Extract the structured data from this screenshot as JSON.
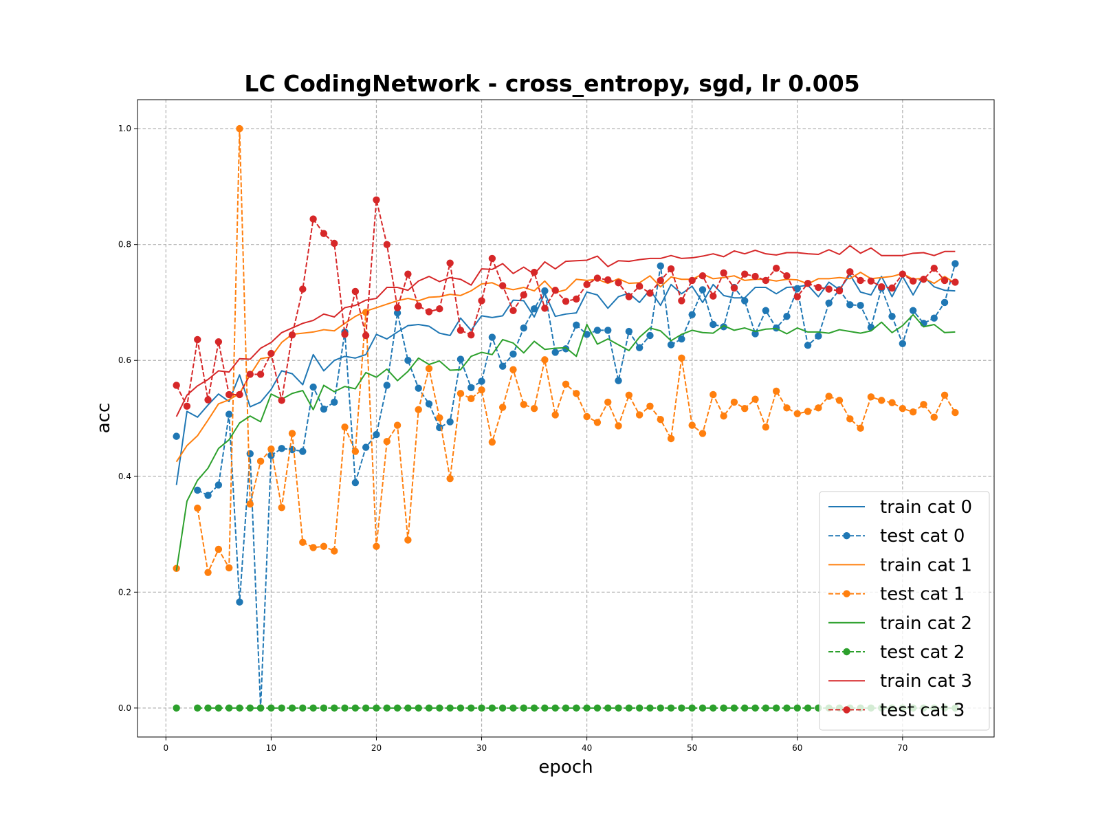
{
  "chart_data": {
    "type": "line",
    "title": "LC CodingNetwork - cross_entropy, sgd, lr 0.005",
    "xlabel": "epoch",
    "ylabel": "acc",
    "xlim": [
      -2.7,
      78.7
    ],
    "ylim": [
      -0.05,
      1.05
    ],
    "xticks": [
      "0",
      "10",
      "20",
      "30",
      "40",
      "50",
      "60",
      "70"
    ],
    "yticks": [
      "0.0",
      "0.2",
      "0.4",
      "0.6",
      "0.8",
      "1.0"
    ],
    "grid": true,
    "legend_position": "lower-right",
    "x": [
      1,
      2,
      3,
      4,
      5,
      6,
      7,
      8,
      9,
      10,
      11,
      12,
      13,
      14,
      15,
      16,
      17,
      18,
      19,
      20,
      21,
      22,
      23,
      24,
      25,
      26,
      27,
      28,
      29,
      30,
      31,
      32,
      33,
      34,
      35,
      36,
      37,
      38,
      39,
      40,
      41,
      42,
      43,
      44,
      45,
      46,
      47,
      48,
      49,
      50,
      51,
      52,
      53,
      54,
      55,
      56,
      57,
      58,
      59,
      60,
      61,
      62,
      63,
      64,
      65,
      66,
      67,
      68,
      69,
      70,
      71,
      72,
      73,
      74,
      75
    ],
    "series": [
      {
        "name": "train cat 0",
        "color": "#1f77b4",
        "style": "solid",
        "marker": false,
        "values": [
          0.385,
          0.512,
          0.502,
          0.523,
          0.542,
          0.529,
          0.575,
          0.52,
          0.528,
          0.55,
          0.582,
          0.577,
          0.558,
          0.61,
          0.582,
          0.6,
          0.607,
          0.604,
          0.61,
          0.645,
          0.637,
          0.649,
          0.66,
          0.662,
          0.659,
          0.647,
          0.643,
          0.673,
          0.652,
          0.677,
          0.674,
          0.677,
          0.704,
          0.703,
          0.675,
          0.716,
          0.676,
          0.68,
          0.682,
          0.718,
          0.713,
          0.69,
          0.71,
          0.716,
          0.7,
          0.722,
          0.695,
          0.731,
          0.715,
          0.728,
          0.7,
          0.731,
          0.712,
          0.708,
          0.708,
          0.726,
          0.726,
          0.715,
          0.726,
          0.727,
          0.73,
          0.71,
          0.735,
          0.722,
          0.748,
          0.718,
          0.713,
          0.745,
          0.71,
          0.745,
          0.713,
          0.745,
          0.727,
          0.721,
          0.72
        ]
      },
      {
        "name": "test cat 0",
        "color": "#1f77b4",
        "style": "dashed",
        "marker": true,
        "values": [
          0.469,
          null,
          0.376,
          0.367,
          0.385,
          0.507,
          0.183,
          0.439,
          0.0,
          0.436,
          0.448,
          0.446,
          0.443,
          0.554,
          0.516,
          0.528,
          0.649,
          0.389,
          0.45,
          0.472,
          0.557,
          0.682,
          0.6,
          0.552,
          0.525,
          0.484,
          0.494,
          0.602,
          0.553,
          0.564,
          0.64,
          0.59,
          0.611,
          0.656,
          0.689,
          0.72,
          0.614,
          0.62,
          0.661,
          0.645,
          0.652,
          0.652,
          0.565,
          0.65,
          0.622,
          0.643,
          0.763,
          0.627,
          0.637,
          0.679,
          0.722,
          0.662,
          0.658,
          0.726,
          0.703,
          0.646,
          0.686,
          0.656,
          0.676,
          0.724,
          0.626,
          0.642,
          0.699,
          0.722,
          0.696,
          0.695,
          0.657,
          0.725,
          0.676,
          0.629,
          0.686,
          0.664,
          0.673,
          0.7,
          0.767
        ]
      },
      {
        "name": "train cat 1",
        "color": "#ff7f0e",
        "style": "solid",
        "marker": false,
        "values": [
          0.425,
          0.453,
          0.47,
          0.497,
          0.525,
          0.532,
          0.543,
          0.575,
          0.603,
          0.606,
          0.631,
          0.645,
          0.647,
          0.649,
          0.653,
          0.651,
          0.664,
          0.676,
          0.685,
          0.691,
          0.697,
          0.703,
          0.707,
          0.703,
          0.709,
          0.71,
          0.714,
          0.712,
          0.72,
          0.732,
          0.734,
          0.726,
          0.722,
          0.726,
          0.72,
          0.737,
          0.717,
          0.722,
          0.74,
          0.738,
          0.74,
          0.733,
          0.741,
          0.733,
          0.734,
          0.746,
          0.727,
          0.744,
          0.74,
          0.74,
          0.749,
          0.741,
          0.743,
          0.746,
          0.738,
          0.74,
          0.74,
          0.737,
          0.74,
          0.739,
          0.732,
          0.741,
          0.741,
          0.743,
          0.741,
          0.752,
          0.741,
          0.743,
          0.745,
          0.75,
          0.74,
          0.742,
          0.733,
          0.745,
          0.733
        ]
      },
      {
        "name": "test cat 1",
        "color": "#ff7f0e",
        "style": "dashed",
        "marker": true,
        "values": [
          0.241,
          null,
          0.345,
          0.234,
          0.274,
          0.242,
          1.0,
          0.352,
          0.426,
          0.447,
          0.346,
          0.474,
          0.286,
          0.277,
          0.279,
          0.271,
          0.485,
          0.443,
          0.683,
          0.279,
          0.46,
          0.488,
          0.29,
          0.515,
          0.586,
          0.501,
          0.396,
          0.543,
          0.534,
          0.549,
          0.459,
          0.519,
          0.584,
          0.524,
          0.517,
          0.601,
          0.506,
          0.559,
          0.543,
          0.503,
          0.493,
          0.528,
          0.487,
          0.54,
          0.506,
          0.521,
          0.498,
          0.465,
          0.604,
          0.488,
          0.474,
          0.541,
          0.504,
          0.528,
          0.517,
          0.533,
          0.485,
          0.547,
          0.518,
          0.508,
          0.512,
          0.518,
          0.538,
          0.531,
          0.499,
          0.483,
          0.537,
          0.531,
          0.527,
          0.517,
          0.511,
          0.524,
          0.502,
          0.54,
          0.51
        ]
      },
      {
        "name": "train cat 2",
        "color": "#2ca02c",
        "style": "solid",
        "marker": false,
        "values": [
          0.237,
          0.357,
          0.393,
          0.414,
          0.448,
          0.463,
          0.492,
          0.504,
          0.494,
          0.542,
          0.533,
          0.543,
          0.548,
          0.515,
          0.557,
          0.546,
          0.555,
          0.551,
          0.579,
          0.571,
          0.585,
          0.565,
          0.581,
          0.604,
          0.593,
          0.599,
          0.583,
          0.584,
          0.607,
          0.614,
          0.61,
          0.636,
          0.63,
          0.613,
          0.633,
          0.619,
          0.621,
          0.622,
          0.607,
          0.662,
          0.628,
          0.637,
          0.627,
          0.617,
          0.64,
          0.656,
          0.651,
          0.634,
          0.645,
          0.652,
          0.648,
          0.647,
          0.66,
          0.652,
          0.656,
          0.65,
          0.654,
          0.655,
          0.646,
          0.656,
          0.649,
          0.649,
          0.647,
          0.653,
          0.65,
          0.647,
          0.651,
          0.666,
          0.648,
          0.66,
          0.679,
          0.658,
          0.662,
          0.648,
          0.649
        ]
      },
      {
        "name": "test cat 2",
        "color": "#2ca02c",
        "style": "dashed",
        "marker": true,
        "values": [
          0.0,
          null,
          0.0,
          0.0,
          0.0,
          0.0,
          0.0,
          0.0,
          0.0,
          0.0,
          0.0,
          0.0,
          0.0,
          0.0,
          0.0,
          0.0,
          0.0,
          0.0,
          0.0,
          0.0,
          0.0,
          0.0,
          0.0,
          0.0,
          0.0,
          0.0,
          0.0,
          0.0,
          0.0,
          0.0,
          0.0,
          0.0,
          0.0,
          0.0,
          0.0,
          0.0,
          0.0,
          0.0,
          0.0,
          0.0,
          0.0,
          0.0,
          0.0,
          0.0,
          0.0,
          0.0,
          0.0,
          0.0,
          0.0,
          0.0,
          0.0,
          0.0,
          0.0,
          0.0,
          0.0,
          0.0,
          0.0,
          0.0,
          0.0,
          0.0,
          0.0,
          0.0,
          0.0,
          0.0,
          0.0,
          0.0,
          0.0,
          0.0,
          0.0,
          0.0,
          0.0,
          0.0,
          0.0,
          0.0,
          0.0
        ]
      },
      {
        "name": "train cat 3",
        "color": "#d62728",
        "style": "solid",
        "marker": false,
        "values": [
          0.503,
          0.54,
          0.556,
          0.567,
          0.582,
          0.58,
          0.603,
          0.602,
          0.621,
          0.631,
          0.648,
          0.656,
          0.664,
          0.669,
          0.68,
          0.675,
          0.691,
          0.695,
          0.704,
          0.707,
          0.726,
          0.726,
          0.721,
          0.737,
          0.745,
          0.736,
          0.743,
          0.74,
          0.73,
          0.758,
          0.757,
          0.767,
          0.75,
          0.761,
          0.749,
          0.77,
          0.758,
          0.771,
          0.772,
          0.773,
          0.78,
          0.762,
          0.772,
          0.771,
          0.774,
          0.776,
          0.776,
          0.781,
          0.776,
          0.777,
          0.78,
          0.784,
          0.779,
          0.789,
          0.784,
          0.79,
          0.784,
          0.782,
          0.786,
          0.786,
          0.784,
          0.783,
          0.791,
          0.783,
          0.798,
          0.785,
          0.794,
          0.781,
          0.781,
          0.781,
          0.785,
          0.786,
          0.781,
          0.788,
          0.788
        ]
      },
      {
        "name": "test cat 3",
        "color": "#d62728",
        "style": "dashed",
        "marker": true,
        "values": [
          0.557,
          0.521,
          0.636,
          0.532,
          0.632,
          0.541,
          0.541,
          0.576,
          0.576,
          0.612,
          0.531,
          0.644,
          0.723,
          0.844,
          0.819,
          0.802,
          0.645,
          0.719,
          0.643,
          0.877,
          0.8,
          0.691,
          0.749,
          0.694,
          0.684,
          0.689,
          0.768,
          0.652,
          0.644,
          0.703,
          0.776,
          0.729,
          0.686,
          0.713,
          0.752,
          0.69,
          0.721,
          0.702,
          0.706,
          0.731,
          0.742,
          0.739,
          0.734,
          0.71,
          0.728,
          0.716,
          0.738,
          0.758,
          0.703,
          0.738,
          0.746,
          0.711,
          0.751,
          0.725,
          0.749,
          0.745,
          0.738,
          0.759,
          0.746,
          0.71,
          0.733,
          0.726,
          0.723,
          0.72,
          0.753,
          0.738,
          0.737,
          0.727,
          0.725,
          0.749,
          0.737,
          0.74,
          0.759,
          0.738,
          0.735
        ]
      }
    ]
  }
}
